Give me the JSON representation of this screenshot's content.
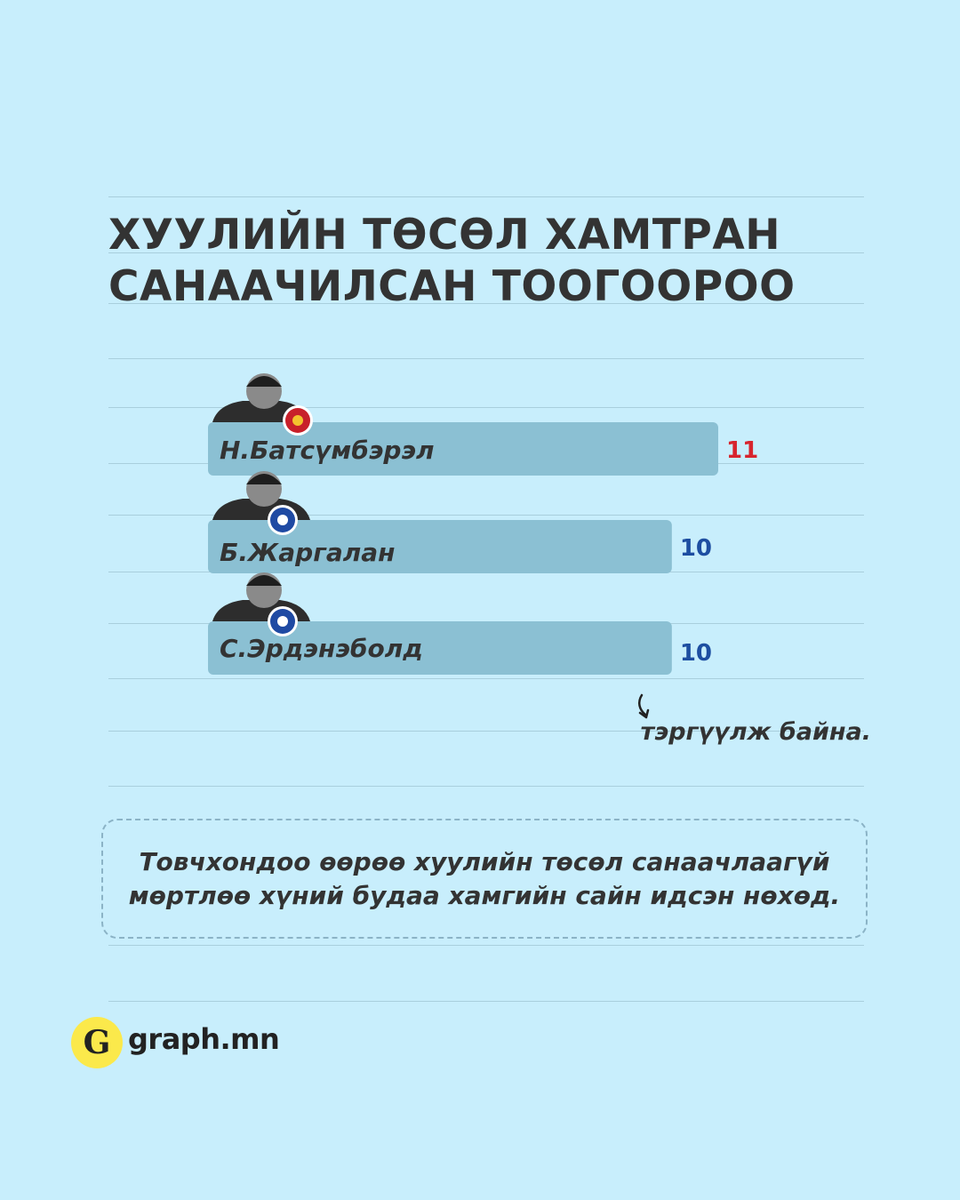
{
  "title_lines": [
    "ХУУЛИЙН ТӨСӨЛ ХАМТРАН",
    "САНААЧИЛСАН ТООГООРОО"
  ],
  "chart_data": {
    "type": "bar",
    "orientation": "horizontal",
    "categories": [
      "Н.Батсүмбэрэл",
      "Б.Жаргалан",
      "С.Эрдэнэболд"
    ],
    "values": [
      11,
      10,
      10
    ],
    "value_colors": [
      "#d7252e",
      "#1d4ea1",
      "#1d4ea1"
    ],
    "party_badges": [
      "mpp-emblem-icon",
      "dp-emblem-icon",
      "dp-emblem-icon"
    ],
    "bar_color": "#8bc0d3",
    "xlim": [
      0,
      11
    ]
  },
  "note": "тэргүүлж байна.",
  "callout": {
    "lines": [
      "Товчхондоо өөрөө хуулийн төсөл санаачлаагүй",
      "мөртлөө хүний будаа хамгийн сайн идсэн нөхөд."
    ]
  },
  "brand": {
    "mark": "G",
    "name": "graph.mn",
    "mark_color": "#fbe94b"
  }
}
